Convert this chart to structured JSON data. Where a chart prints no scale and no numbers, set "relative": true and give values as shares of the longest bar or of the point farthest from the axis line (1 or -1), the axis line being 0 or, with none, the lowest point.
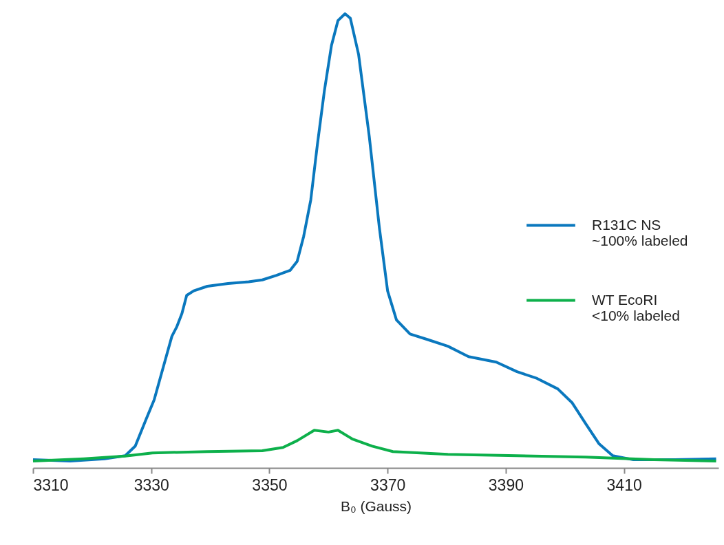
{
  "chart_data": {
    "type": "line",
    "xlabel": "B₀ (Gauss)",
    "relative": true,
    "xlim": [
      3310,
      3426
    ],
    "xticks": [
      3310,
      3330,
      3350,
      3370,
      3390,
      3410
    ],
    "grid": false,
    "legend": "right",
    "series": [
      {
        "name": "R131C NS\n~100% labeled",
        "color": "#0a78be",
        "x": [
          3310,
          3316.3,
          3322.1,
          3325.6,
          3327.3,
          3329.1,
          3330.5,
          3332,
          3333.5,
          3334.3,
          3335.2,
          3336,
          3337.2,
          3339.5,
          3343,
          3346.5,
          3348.8,
          3351.2,
          3353.5,
          3354.7,
          3355.8,
          3357,
          3358.1,
          3359.3,
          3360.5,
          3361.6,
          3362.8,
          3363.7,
          3365.1,
          3366.9,
          3368.6,
          3370,
          3371.5,
          3373.8,
          3376.7,
          3380.2,
          3383.7,
          3388.4,
          3391.9,
          3395.3,
          3398.8,
          3401.2,
          3403.5,
          3405.8,
          3408.1,
          3411.6,
          3418.6,
          3425.6
        ],
        "values": [
          0.018,
          0.015,
          0.02,
          0.027,
          0.048,
          0.106,
          0.15,
          0.22,
          0.29,
          0.31,
          0.34,
          0.38,
          0.39,
          0.4,
          0.406,
          0.41,
          0.414,
          0.424,
          0.435,
          0.455,
          0.51,
          0.59,
          0.71,
          0.83,
          0.93,
          0.985,
          1,
          0.99,
          0.91,
          0.73,
          0.53,
          0.39,
          0.326,
          0.295,
          0.283,
          0.268,
          0.245,
          0.233,
          0.212,
          0.197,
          0.174,
          0.144,
          0.098,
          0.053,
          0.027,
          0.018,
          0.018,
          0.02
        ]
      },
      {
        "name": "WT EcoRI\n<10% labeled",
        "color": "#0db04b",
        "x": [
          3310,
          3318.6,
          3325.6,
          3330.2,
          3339.5,
          3348.8,
          3352.3,
          3354.7,
          3357.6,
          3360,
          3361.6,
          3364,
          3367.4,
          3370.9,
          3380.2,
          3391.9,
          3403.5,
          3415.1,
          3425.6
        ],
        "values": [
          0.015,
          0.02,
          0.026,
          0.033,
          0.036,
          0.038,
          0.045,
          0.06,
          0.083,
          0.079,
          0.083,
          0.064,
          0.048,
          0.036,
          0.03,
          0.027,
          0.024,
          0.018,
          0.015
        ]
      }
    ]
  }
}
